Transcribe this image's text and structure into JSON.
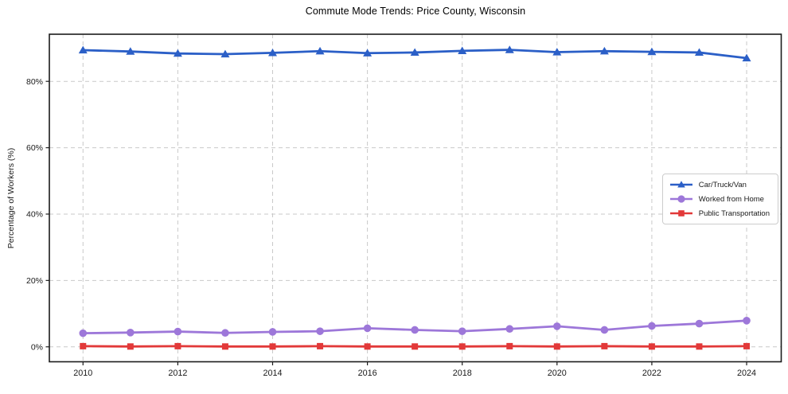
{
  "chart_data": {
    "type": "line",
    "title": "Commute Mode Trends: Price County, Wisconsin",
    "xlabel": "",
    "ylabel": "Percentage of Workers (%)",
    "x": [
      2010,
      2011,
      2012,
      2013,
      2014,
      2015,
      2016,
      2017,
      2018,
      2019,
      2020,
      2021,
      2022,
      2023,
      2024
    ],
    "series": [
      {
        "name": "Car/Truck/Van",
        "color": "#2b5fc7",
        "marker": "triangle",
        "values": [
          89.4,
          89.0,
          88.4,
          88.2,
          88.6,
          89.1,
          88.5,
          88.7,
          89.2,
          89.5,
          88.8,
          89.1,
          88.9,
          88.7,
          87.0
        ]
      },
      {
        "name": "Worked from Home",
        "color": "#9d77d9",
        "marker": "circle",
        "values": [
          4.1,
          4.3,
          4.6,
          4.2,
          4.5,
          4.7,
          5.6,
          5.1,
          4.7,
          5.4,
          6.2,
          5.1,
          6.3,
          7.0,
          7.9
        ]
      },
      {
        "name": "Public Transportation",
        "color": "#e23939",
        "marker": "square",
        "values": [
          0.2,
          0.1,
          0.2,
          0.1,
          0.1,
          0.2,
          0.1,
          0.1,
          0.1,
          0.2,
          0.1,
          0.2,
          0.1,
          0.1,
          0.2
        ]
      }
    ],
    "x_ticks": [
      {
        "value": 2010,
        "label": "2010"
      },
      {
        "value": 2012,
        "label": "2012"
      },
      {
        "value": 2014,
        "label": "2014"
      },
      {
        "value": 2016,
        "label": "2016"
      },
      {
        "value": 2018,
        "label": "2018"
      },
      {
        "value": 2020,
        "label": "2020"
      },
      {
        "value": 2022,
        "label": "2022"
      },
      {
        "value": 2024,
        "label": "2024"
      }
    ],
    "y_ticks": [
      {
        "value": 0,
        "label": "0%"
      },
      {
        "value": 20,
        "label": "20%"
      },
      {
        "value": 40,
        "label": "40%"
      },
      {
        "value": 60,
        "label": "60%"
      },
      {
        "value": 80,
        "label": "80%"
      }
    ],
    "xlim": [
      2009.29,
      2024.73
    ],
    "ylim": [
      -4.5,
      94.2
    ],
    "grid": true,
    "grid_style": "dashed",
    "grid_color": "#c9c9c9",
    "axis_color": "#1c1c1c",
    "legend_position": "center-right"
  }
}
